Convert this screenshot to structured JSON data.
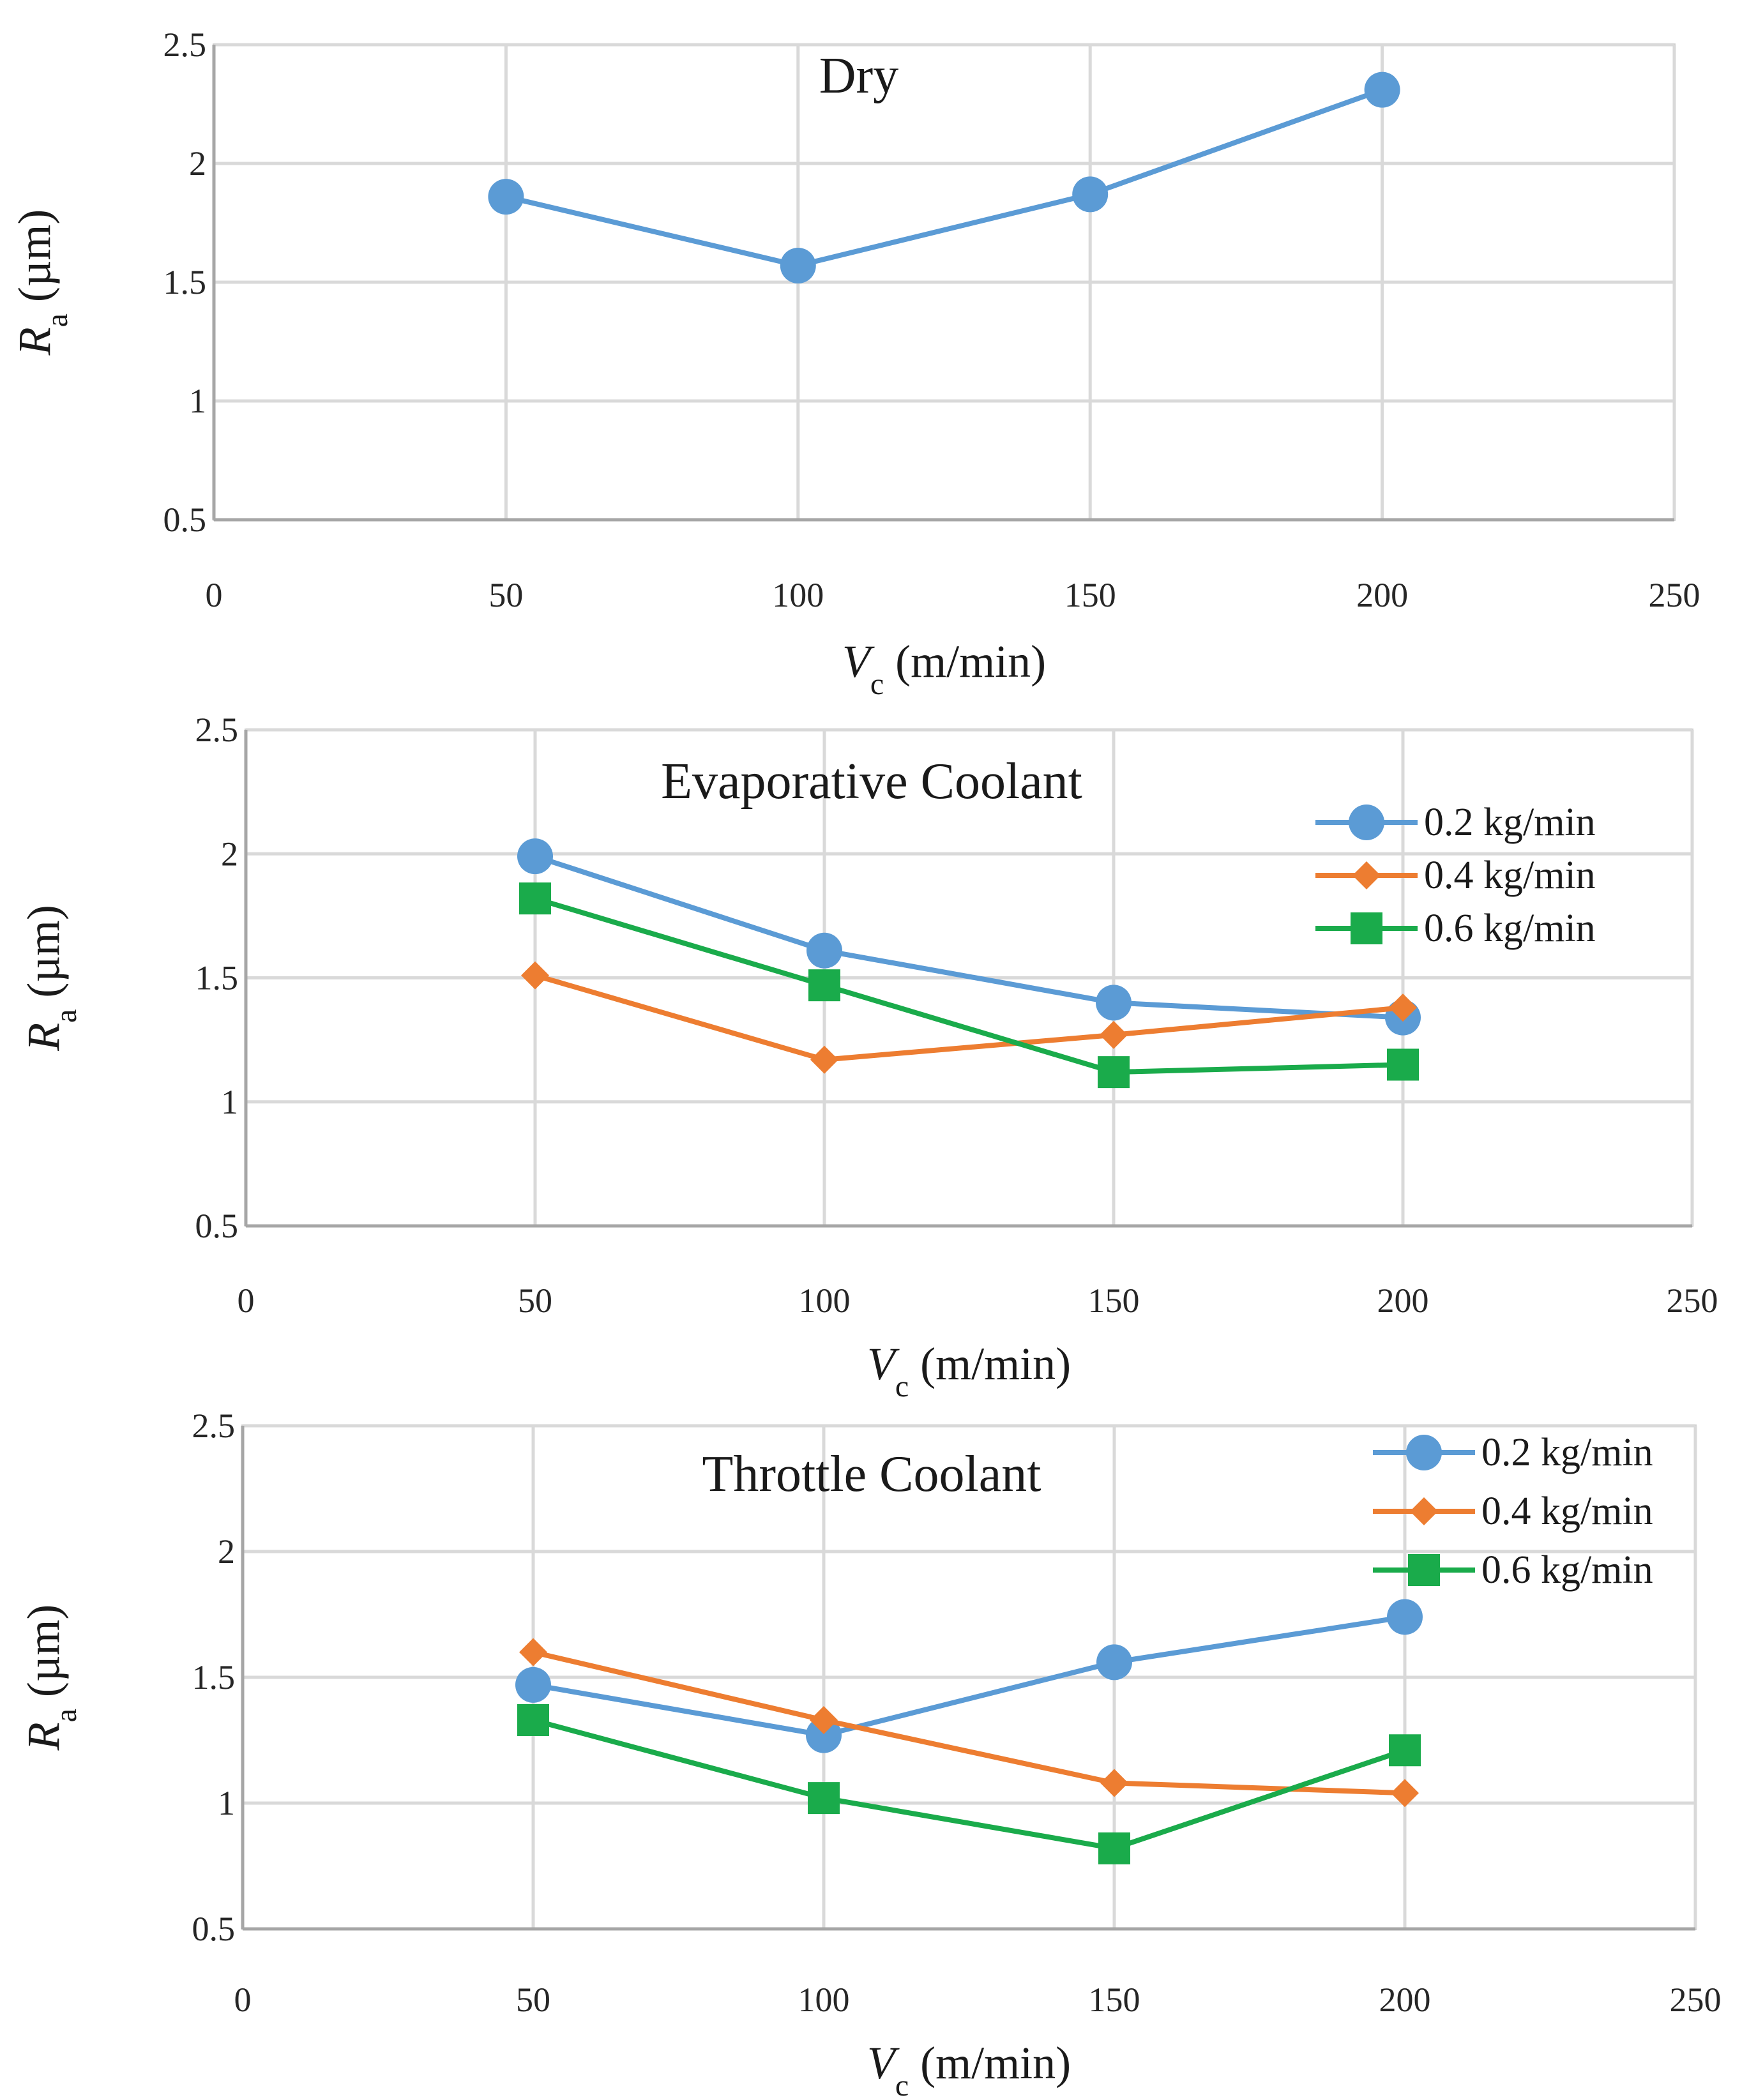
{
  "chart_data": [
    {
      "type": "line",
      "title": "Dry",
      "xlabel": {
        "main": "V",
        "sub": "c",
        "rest": " (m/min)"
      },
      "ylabel": {
        "main": "R",
        "sub": "a",
        "rest": " (µm)"
      },
      "xlim": [
        0,
        250
      ],
      "ylim": [
        0.5,
        2.5
      ],
      "xticks": [
        0,
        50,
        100,
        150,
        200,
        250
      ],
      "xtick_labels": [
        "0",
        "50",
        "100",
        "150",
        "200",
        "250"
      ],
      "yticks": [
        0.5,
        1,
        1.5,
        2,
        2.5
      ],
      "ytick_labels": [
        "0.5",
        "1",
        "1.5",
        "2",
        "2.5"
      ],
      "x": [
        50,
        100,
        150,
        200
      ],
      "legend": false,
      "series": [
        {
          "name": "Dry",
          "color": "#5b9bd5",
          "marker": "circle",
          "values": [
            1.86,
            1.57,
            1.87,
            2.31
          ]
        }
      ]
    },
    {
      "type": "line",
      "title": "Evaporative Coolant",
      "xlabel": {
        "main": "V",
        "sub": "c",
        "rest": " (m/min)"
      },
      "ylabel": {
        "main": "R",
        "sub": "a",
        "rest": " (µm)"
      },
      "xlim": [
        0,
        250
      ],
      "ylim": [
        0.5,
        2.5
      ],
      "xticks": [
        0,
        50,
        100,
        150,
        200,
        250
      ],
      "xtick_labels": [
        "0",
        "50",
        "100",
        "150",
        "200",
        "250"
      ],
      "yticks": [
        0.5,
        1,
        1.5,
        2,
        2.5
      ],
      "ytick_labels": [
        "0.5",
        "1",
        "1.5",
        "2",
        "2.5"
      ],
      "x": [
        50,
        100,
        150,
        200
      ],
      "legend": true,
      "legend_position": "top-right",
      "series": [
        {
          "name": "0.2 kg/min",
          "color": "#5b9bd5",
          "marker": "circle",
          "values": [
            1.99,
            1.61,
            1.4,
            1.34
          ]
        },
        {
          "name": "0.4 kg/min",
          "color": "#ed7d31",
          "marker": "diamond",
          "values": [
            1.51,
            1.17,
            1.27,
            1.38
          ]
        },
        {
          "name": "0.6 kg/min",
          "color": "#1aab4b",
          "marker": "square",
          "values": [
            1.82,
            1.47,
            1.12,
            1.15
          ]
        }
      ]
    },
    {
      "type": "line",
      "title": "Throttle Coolant",
      "xlabel": {
        "main": "V",
        "sub": "c",
        "rest": " (m/min)"
      },
      "ylabel": {
        "main": "R",
        "sub": "a",
        "rest": " (µm)"
      },
      "xlim": [
        0,
        250
      ],
      "ylim": [
        0.5,
        2.5
      ],
      "xticks": [
        0,
        50,
        100,
        150,
        200,
        250
      ],
      "xtick_labels": [
        "0",
        "50",
        "100",
        "150",
        "200",
        "250"
      ],
      "yticks": [
        0.5,
        1,
        1.5,
        2,
        2.5
      ],
      "ytick_labels": [
        "0.5",
        "1",
        "1.5",
        "2",
        "2.5"
      ],
      "x": [
        50,
        100,
        150,
        200
      ],
      "legend": true,
      "legend_position": "top-right",
      "series": [
        {
          "name": "0.2 kg/min",
          "color": "#5b9bd5",
          "marker": "circle",
          "values": [
            1.47,
            1.27,
            1.56,
            1.74
          ]
        },
        {
          "name": "0.4 kg/min",
          "color": "#ed7d31",
          "marker": "diamond",
          "values": [
            1.6,
            1.33,
            1.08,
            1.04
          ]
        },
        {
          "name": "0.6 kg/min",
          "color": "#1aab4b",
          "marker": "square",
          "values": [
            1.33,
            1.02,
            0.82,
            1.21
          ]
        }
      ]
    }
  ]
}
